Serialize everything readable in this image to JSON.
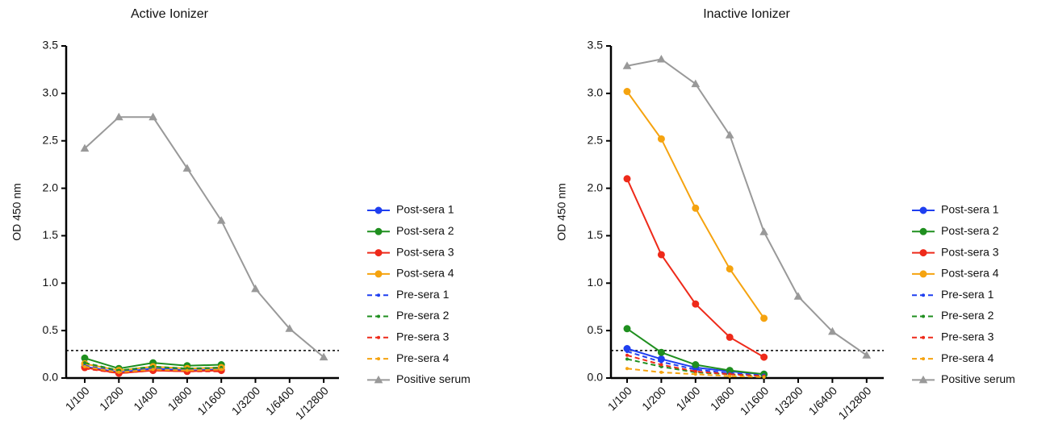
{
  "chart_data": [
    {
      "type": "line",
      "title": "Active Ionizer",
      "y_label": "OD 450 nm",
      "categories": [
        "1/100",
        "1/200",
        "1/400",
        "1/800",
        "1/1600",
        "1/3200",
        "1/6400",
        "1/12800"
      ],
      "ylim": [
        0,
        3.5
      ],
      "yticks": [
        {
          "value": 0,
          "label": "0.0"
        },
        0.5,
        {
          "value": 1,
          "label": "1.0"
        },
        1.5,
        {
          "value": 2,
          "label": "2.0"
        },
        2.5,
        {
          "value": 3,
          "label": "3.0"
        },
        3.5
      ],
      "cutoff": 0.29,
      "series": [
        {
          "name": "Post-sera 1",
          "color": "#1f3ff0",
          "dash": false,
          "marker": "circle",
          "values": [
            0.12,
            0.06,
            0.1,
            0.08,
            0.09,
            null,
            null,
            null
          ]
        },
        {
          "name": "Post-sera 2",
          "color": "#1f8f1f",
          "dash": false,
          "marker": "circle",
          "values": [
            0.21,
            0.1,
            0.16,
            0.13,
            0.14,
            null,
            null,
            null
          ]
        },
        {
          "name": "Post-sera 3",
          "color": "#ee2a1a",
          "dash": false,
          "marker": "circle",
          "values": [
            0.11,
            0.05,
            0.08,
            0.07,
            0.08,
            null,
            null,
            null
          ]
        },
        {
          "name": "Post-sera 4",
          "color": "#f5a30f",
          "dash": false,
          "marker": "circle",
          "values": [
            0.15,
            0.08,
            0.12,
            0.1,
            0.11,
            null,
            null,
            null
          ]
        },
        {
          "name": "Pre-sera 1",
          "color": "#1f3ff0",
          "dash": true,
          "marker": "circle",
          "values": [
            0.13,
            0.07,
            0.1,
            0.09,
            0.1,
            null,
            null,
            null
          ]
        },
        {
          "name": "Pre-sera 2",
          "color": "#1f8f1f",
          "dash": true,
          "marker": "circle",
          "values": [
            0.16,
            0.08,
            0.12,
            0.1,
            0.11,
            null,
            null,
            null
          ]
        },
        {
          "name": "Pre-sera 3",
          "color": "#ee2a1a",
          "dash": true,
          "marker": "circle",
          "values": [
            0.1,
            0.05,
            0.08,
            0.07,
            0.07,
            null,
            null,
            null
          ]
        },
        {
          "name": "Pre-sera 4",
          "color": "#f5a30f",
          "dash": true,
          "marker": "circle",
          "values": [
            0.12,
            0.06,
            0.09,
            0.08,
            0.09,
            null,
            null,
            null
          ]
        },
        {
          "name": "Positive serum",
          "color": "#999999",
          "dash": false,
          "marker": "triangle",
          "values": [
            2.42,
            2.75,
            2.75,
            2.21,
            1.66,
            0.94,
            0.52,
            0.22
          ]
        }
      ]
    },
    {
      "type": "line",
      "title": "Inactive Ionizer",
      "y_label": "OD 450 nm",
      "categories": [
        "1/100",
        "1/200",
        "1/400",
        "1/800",
        "1/1600",
        "1/3200",
        "1/6400",
        "1/12800"
      ],
      "ylim": [
        0,
        3.5
      ],
      "yticks": [
        {
          "value": 0,
          "label": "0.0"
        },
        0.5,
        {
          "value": 1,
          "label": "1.0"
        },
        1.5,
        {
          "value": 2,
          "label": "2.0"
        },
        2.5,
        {
          "value": 3,
          "label": "3.0"
        },
        3.5
      ],
      "cutoff": 0.29,
      "series": [
        {
          "name": "Post-sera 1",
          "color": "#1f3ff0",
          "dash": false,
          "marker": "circle",
          "values": [
            0.31,
            0.2,
            0.11,
            0.07,
            0.04,
            null,
            null,
            null
          ]
        },
        {
          "name": "Post-sera 2",
          "color": "#1f8f1f",
          "dash": false,
          "marker": "circle",
          "values": [
            0.52,
            0.27,
            0.14,
            0.08,
            0.04,
            null,
            null,
            null
          ]
        },
        {
          "name": "Post-sera 3",
          "color": "#ee2a1a",
          "dash": false,
          "marker": "circle",
          "values": [
            2.1,
            1.3,
            0.78,
            0.43,
            0.22,
            null,
            null,
            null
          ]
        },
        {
          "name": "Post-sera 4",
          "color": "#f5a30f",
          "dash": false,
          "marker": "circle",
          "values": [
            3.02,
            2.52,
            1.79,
            1.15,
            0.63,
            null,
            null,
            null
          ]
        },
        {
          "name": "Pre-sera 1",
          "color": "#1f3ff0",
          "dash": true,
          "marker": "circle",
          "values": [
            0.28,
            0.17,
            0.09,
            0.05,
            0.03,
            null,
            null,
            null
          ]
        },
        {
          "name": "Pre-sera 2",
          "color": "#1f8f1f",
          "dash": true,
          "marker": "circle",
          "values": [
            0.2,
            0.12,
            0.06,
            0.04,
            0.02,
            null,
            null,
            null
          ]
        },
        {
          "name": "Pre-sera 3",
          "color": "#ee2a1a",
          "dash": true,
          "marker": "circle",
          "values": [
            0.24,
            0.14,
            0.07,
            0.04,
            0.02,
            null,
            null,
            null
          ]
        },
        {
          "name": "Pre-sera 4",
          "color": "#f5a30f",
          "dash": true,
          "marker": "circle",
          "values": [
            0.1,
            0.06,
            0.04,
            0.02,
            0.01,
            null,
            null,
            null
          ]
        },
        {
          "name": "Positive serum",
          "color": "#999999",
          "dash": false,
          "marker": "triangle",
          "values": [
            3.29,
            3.36,
            3.1,
            2.56,
            1.54,
            0.86,
            0.49,
            0.24
          ]
        }
      ]
    }
  ]
}
